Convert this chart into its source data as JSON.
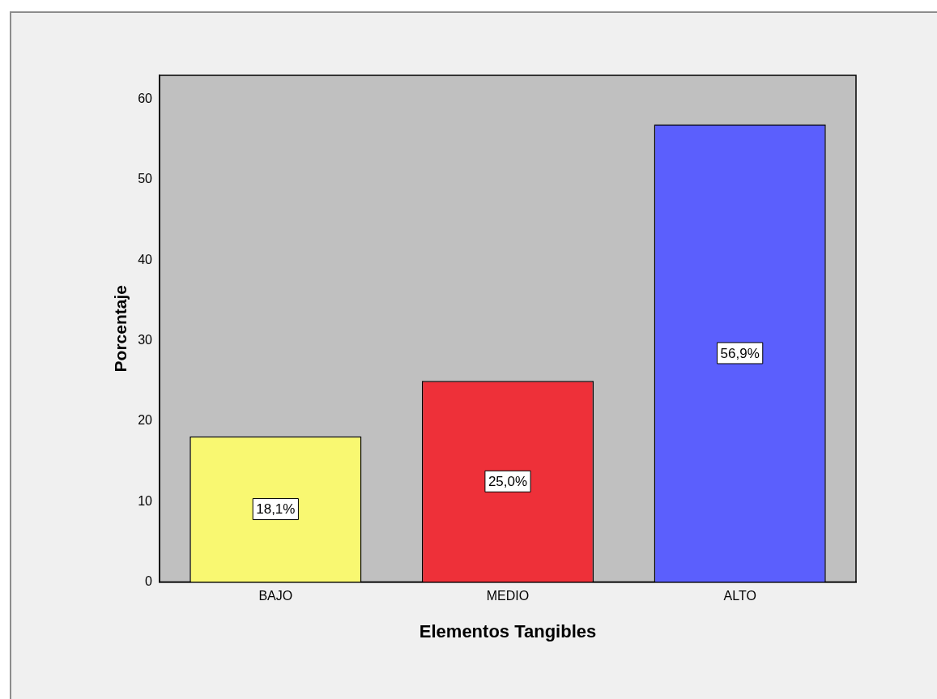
{
  "chart_data": {
    "type": "bar",
    "xlabel": "Elementos Tangibles",
    "ylabel": "Porcentaje",
    "categories": [
      "BAJO",
      "MEDIO",
      "ALTO"
    ],
    "values": [
      18.1,
      25.0,
      56.9
    ],
    "colors": [
      "#f9f871",
      "#ee3039",
      "#5b5ffd"
    ],
    "value_labels": [
      "18,1%",
      "25,0%",
      "56,9%"
    ],
    "ylim": [
      0,
      63
    ],
    "yticks": [
      0,
      10,
      20,
      30,
      40,
      50,
      60
    ],
    "grid": false,
    "legend": false
  }
}
